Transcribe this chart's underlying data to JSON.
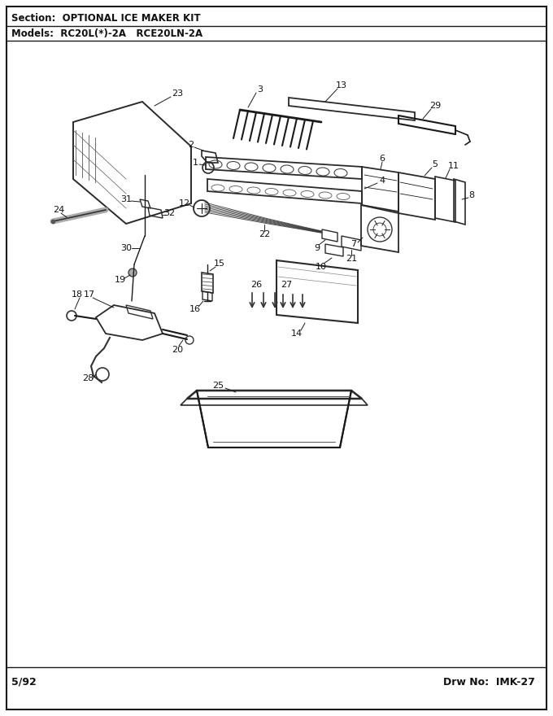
{
  "section_text": "Section:  OPTIONAL ICE MAKER KIT",
  "models_text": "Models:  RC20L(*)-2A   RCE20LN-2A",
  "footer_left": "5/92",
  "footer_right": "Drw No:  IMK-27",
  "bg_color": "#ffffff",
  "border_color": "#000000",
  "text_color": "#000000",
  "fig_width": 6.8,
  "fig_height": 8.8,
  "dpi": 100
}
